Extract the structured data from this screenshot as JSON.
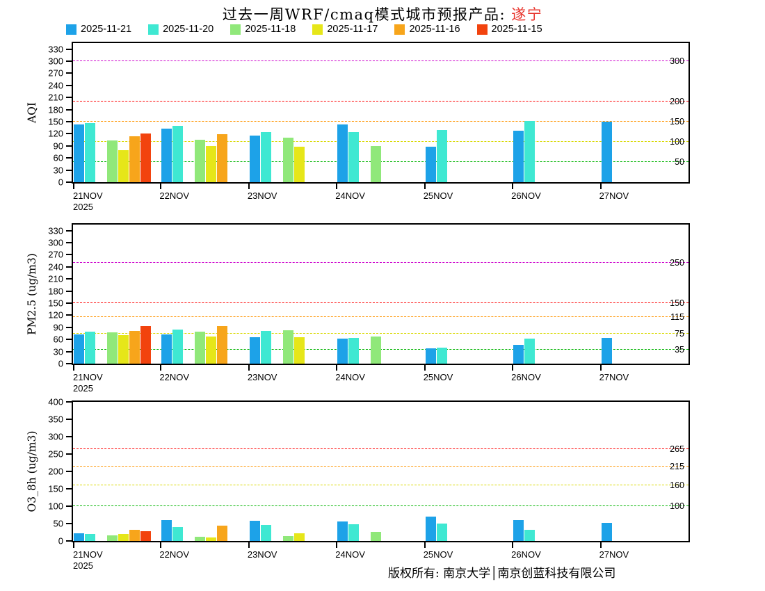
{
  "title": {
    "prefix": "过去一周WRF/cmaq模式城市预报产品: ",
    "city": "遂宁"
  },
  "legend": [
    {
      "label": "2025-11-21",
      "color": "#1da2e8"
    },
    {
      "label": "2025-11-20",
      "color": "#3fe8d2"
    },
    {
      "label": "2025-11-18",
      "color": "#90e87a"
    },
    {
      "label": "2025-11-17",
      "color": "#e6e619"
    },
    {
      "label": "2025-11-16",
      "color": "#f7a51b"
    },
    {
      "label": "2025-11-15",
      "color": "#f2430e"
    }
  ],
  "footer": "版权所有: 南京大学│南京创蓝科技有限公司",
  "chart_data": [
    {
      "id": "aqi",
      "type": "bar",
      "title": "",
      "xlabel": "",
      "ylabel": "AQI",
      "ylim": [
        0,
        345
      ],
      "yticks": [
        0,
        30,
        60,
        90,
        120,
        150,
        180,
        210,
        240,
        270,
        300,
        330
      ],
      "categories": [
        "21NOV",
        "22NOV",
        "23NOV",
        "24NOV",
        "25NOV",
        "26NOV",
        "27NOV"
      ],
      "year_label": "2025",
      "legend_position": "top-left",
      "grid": false,
      "ref_lines": [
        {
          "value": 50,
          "label": "50",
          "color": "#00b400"
        },
        {
          "value": 100,
          "label": "100",
          "color": "#d9d900"
        },
        {
          "value": 150,
          "label": "150",
          "color": "#ff9500"
        },
        {
          "value": 200,
          "label": "200",
          "color": "#ff0000"
        },
        {
          "value": 300,
          "label": "300",
          "color": "#cc00cc"
        }
      ],
      "series": [
        {
          "name": "2025-11-21",
          "color": "#1da2e8",
          "slot": 0,
          "values": [
            144,
            132,
            115,
            144,
            88,
            127,
            150
          ]
        },
        {
          "name": "2025-11-20",
          "color": "#3fe8d2",
          "slot": 1,
          "values": [
            147,
            139,
            125,
            124,
            129,
            152,
            null
          ]
        },
        {
          "name": "2025-11-18",
          "color": "#90e87a",
          "slot": 3,
          "values": [
            103,
            105,
            110,
            89,
            null,
            null,
            null
          ]
        },
        {
          "name": "2025-11-17",
          "color": "#e6e619",
          "slot": 4,
          "values": [
            79,
            89,
            88,
            null,
            null,
            null,
            null
          ]
        },
        {
          "name": "2025-11-16",
          "color": "#f7a51b",
          "slot": 5,
          "values": [
            113,
            119,
            null,
            null,
            null,
            null,
            null
          ]
        },
        {
          "name": "2025-11-15",
          "color": "#f2430e",
          "slot": 6,
          "values": [
            120,
            null,
            null,
            null,
            null,
            null,
            null
          ]
        }
      ]
    },
    {
      "id": "pm25",
      "type": "bar",
      "title": "",
      "xlabel": "",
      "ylabel": "PM2.5 (ug/m3)",
      "ylim": [
        0,
        345
      ],
      "yticks": [
        0,
        30,
        60,
        90,
        120,
        150,
        180,
        210,
        240,
        270,
        300,
        330
      ],
      "categories": [
        "21NOV",
        "22NOV",
        "23NOV",
        "24NOV",
        "25NOV",
        "26NOV",
        "27NOV"
      ],
      "year_label": "2025",
      "legend_position": "top-left",
      "grid": false,
      "ref_lines": [
        {
          "value": 35,
          "label": "35",
          "color": "#00b400"
        },
        {
          "value": 75,
          "label": "75",
          "color": "#d9d900"
        },
        {
          "value": 115,
          "label": "115",
          "color": "#ff9500"
        },
        {
          "value": 150,
          "label": "150",
          "color": "#ff0000"
        },
        {
          "value": 250,
          "label": "250",
          "color": "#cc00cc"
        }
      ],
      "series": [
        {
          "name": "2025-11-21",
          "color": "#1da2e8",
          "slot": 0,
          "values": [
            72,
            72,
            65,
            62,
            38,
            46,
            64
          ]
        },
        {
          "name": "2025-11-20",
          "color": "#3fe8d2",
          "slot": 1,
          "values": [
            79,
            84,
            81,
            63,
            40,
            62,
            null
          ]
        },
        {
          "name": "2025-11-18",
          "color": "#90e87a",
          "slot": 3,
          "values": [
            77,
            79,
            83,
            68,
            null,
            null,
            null
          ]
        },
        {
          "name": "2025-11-17",
          "color": "#e6e619",
          "slot": 4,
          "values": [
            70,
            68,
            66,
            null,
            null,
            null,
            null
          ]
        },
        {
          "name": "2025-11-16",
          "color": "#f7a51b",
          "slot": 5,
          "values": [
            81,
            93,
            null,
            null,
            null,
            null,
            null
          ]
        },
        {
          "name": "2025-11-15",
          "color": "#f2430e",
          "slot": 6,
          "values": [
            93,
            null,
            null,
            null,
            null,
            null,
            null
          ]
        }
      ]
    },
    {
      "id": "o3_8h",
      "type": "bar",
      "title": "",
      "xlabel": "",
      "ylabel": "O3_8h (ug/m3)",
      "ylim": [
        0,
        400
      ],
      "yticks": [
        0,
        50,
        100,
        150,
        200,
        250,
        300,
        350,
        400
      ],
      "categories": [
        "21NOV",
        "22NOV",
        "23NOV",
        "24NOV",
        "25NOV",
        "26NOV",
        "27NOV"
      ],
      "year_label": "2025",
      "legend_position": "top-left",
      "grid": false,
      "ref_lines": [
        {
          "value": 100,
          "label": "100",
          "color": "#00b400"
        },
        {
          "value": 160,
          "label": "160",
          "color": "#d9d900"
        },
        {
          "value": 215,
          "label": "215",
          "color": "#ff9500"
        },
        {
          "value": 265,
          "label": "265",
          "color": "#ff0000"
        }
      ],
      "series": [
        {
          "name": "2025-11-21",
          "color": "#1da2e8",
          "slot": 0,
          "values": [
            22,
            60,
            58,
            57,
            70,
            60,
            52
          ]
        },
        {
          "name": "2025-11-20",
          "color": "#3fe8d2",
          "slot": 1,
          "values": [
            20,
            40,
            47,
            49,
            50,
            33,
            null
          ]
        },
        {
          "name": "2025-11-18",
          "color": "#90e87a",
          "slot": 3,
          "values": [
            17,
            12,
            14,
            26,
            null,
            null,
            null
          ]
        },
        {
          "name": "2025-11-17",
          "color": "#e6e619",
          "slot": 4,
          "values": [
            20,
            10,
            23,
            null,
            null,
            null,
            null
          ]
        },
        {
          "name": "2025-11-16",
          "color": "#f7a51b",
          "slot": 5,
          "values": [
            33,
            45,
            null,
            null,
            null,
            null,
            null
          ]
        },
        {
          "name": "2025-11-15",
          "color": "#f2430e",
          "slot": 6,
          "values": [
            29,
            null,
            null,
            null,
            null,
            null,
            null
          ]
        }
      ]
    }
  ]
}
